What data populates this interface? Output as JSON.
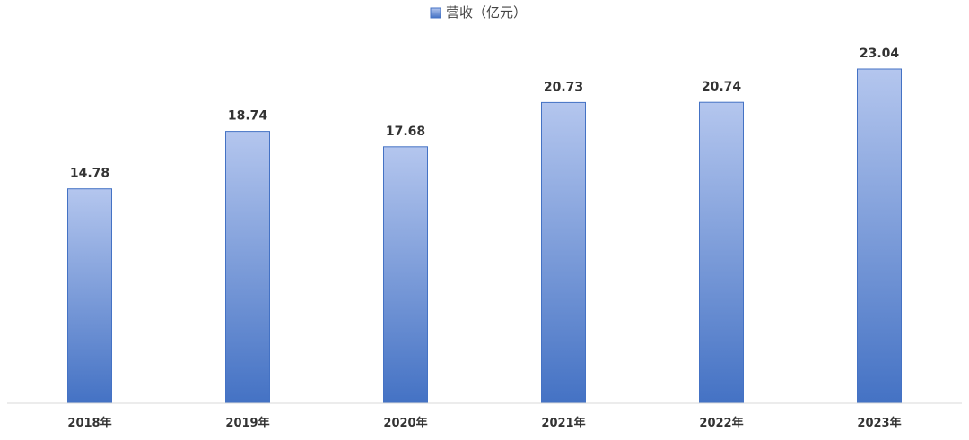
{
  "chart_data": {
    "type": "bar",
    "title": "",
    "xlabel": "",
    "ylabel": "",
    "categories": [
      "2018年",
      "2019年",
      "2020年",
      "2021年",
      "2022年",
      "2023年"
    ],
    "series": [
      {
        "name": "营收（亿元）",
        "values": [
          14.78,
          18.74,
          17.68,
          20.73,
          20.74,
          23.04
        ]
      }
    ],
    "value_labels": [
      "14.78",
      "18.74",
      "17.68",
      "20.73",
      "20.74",
      "23.04"
    ],
    "ylim": [
      0,
      23.04
    ],
    "grid": false,
    "legend_position": "top-center",
    "colors": {
      "bar_top": "#B4C6EE",
      "bar_bottom": "#4472C4",
      "bar_border": "#4472C4",
      "axis": "#D9D9D9"
    }
  }
}
